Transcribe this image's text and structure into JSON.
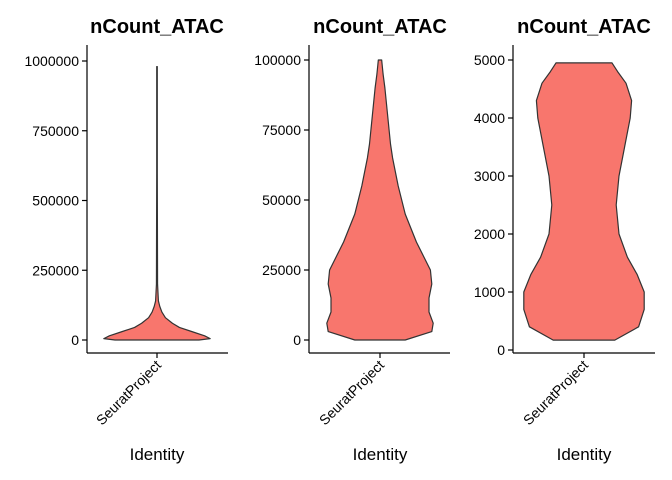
{
  "colors": {
    "violin_fill": "#F8766D",
    "violin_stroke": "#333333",
    "axis": "#000000",
    "background": "#FFFFFF"
  },
  "chart_data": [
    {
      "type": "violin",
      "title": "nCount_ATAC",
      "xlabel": "Identity",
      "ylabel": "",
      "categories": [
        "SeuratProject"
      ],
      "ylim": [
        0,
        980000
      ],
      "yticks": [
        0,
        250000,
        500000,
        750000,
        1000000
      ],
      "ytick_labels": [
        "0",
        "250000",
        "500000",
        "750000",
        "1000000"
      ],
      "series": [
        {
          "category": "SeuratProject",
          "profile_y": [
            0,
            5000,
            15000,
            30000,
            45000,
            60000,
            80000,
            100000,
            120000,
            140000,
            200000,
            400000,
            600000,
            800000,
            980000
          ],
          "profile_halfwidth": [
            0.3,
            0.38,
            0.34,
            0.25,
            0.16,
            0.11,
            0.06,
            0.035,
            0.02,
            0.01,
            0.004,
            0.003,
            0.002,
            0.002,
            0.002
          ]
        }
      ],
      "legend": "none",
      "grid": false
    },
    {
      "type": "violin",
      "title": "nCount_ATAC",
      "xlabel": "Identity",
      "ylabel": "",
      "categories": [
        "SeuratProject"
      ],
      "ylim": [
        0,
        100000
      ],
      "yticks": [
        0,
        25000,
        50000,
        75000,
        100000
      ],
      "ytick_labels": [
        "0",
        "25000",
        "50000",
        "75000",
        "100000"
      ],
      "series": [
        {
          "category": "SeuratProject",
          "profile_y": [
            0,
            3000,
            6000,
            10000,
            15000,
            20000,
            25000,
            30000,
            35000,
            40000,
            45000,
            50000,
            55000,
            60000,
            65000,
            70000,
            75000,
            80000,
            85000,
            90000,
            95000,
            100000
          ],
          "profile_halfwidth": [
            0.18,
            0.37,
            0.38,
            0.35,
            0.35,
            0.37,
            0.36,
            0.31,
            0.26,
            0.22,
            0.18,
            0.155,
            0.13,
            0.11,
            0.09,
            0.075,
            0.065,
            0.055,
            0.045,
            0.035,
            0.022,
            0.012
          ]
        }
      ],
      "legend": "none",
      "grid": false
    },
    {
      "type": "violin",
      "title": "nCount_ATAC",
      "xlabel": "Identity",
      "ylabel": "",
      "categories": [
        "SeuratProject"
      ],
      "ylim": [
        0,
        5000
      ],
      "yticks": [
        0,
        1000,
        2000,
        3000,
        4000,
        5000
      ],
      "ytick_labels": [
        "0",
        "1000",
        "2000",
        "3000",
        "4000",
        "5000"
      ],
      "series": [
        {
          "category": "SeuratProject",
          "profile_y": [
            170,
            400,
            700,
            1000,
            1300,
            1600,
            2000,
            2500,
            3000,
            3500,
            4000,
            4300,
            4600,
            4800,
            4950
          ],
          "profile_halfwidth": [
            0.22,
            0.39,
            0.43,
            0.43,
            0.38,
            0.31,
            0.25,
            0.23,
            0.25,
            0.29,
            0.33,
            0.34,
            0.3,
            0.24,
            0.2
          ]
        }
      ],
      "legend": "none",
      "grid": false
    }
  ]
}
